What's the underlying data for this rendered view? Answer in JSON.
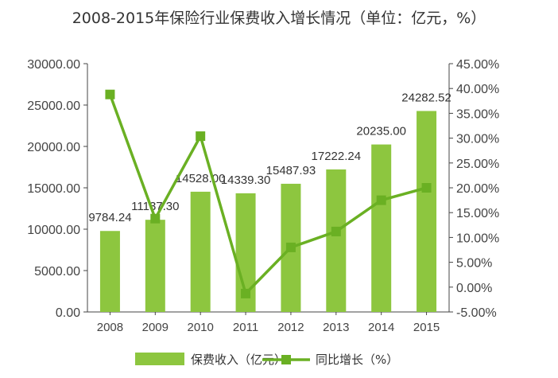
{
  "chart_data": {
    "type": "bar",
    "title": "2008-2015年保险行业保费收入增长情况（单位：亿元，%）",
    "categories": [
      "2008",
      "2009",
      "2010",
      "2011",
      "2012",
      "2013",
      "2014",
      "2015"
    ],
    "series": [
      {
        "name": "保费收入（亿元）",
        "type": "bar",
        "axis": "left",
        "values": [
          9784.24,
          11137.3,
          14528.0,
          14339.3,
          15487.93,
          17222.24,
          20235.0,
          24282.52
        ],
        "labels": [
          "9784.24",
          "11137.30",
          "14528.00",
          "14339.30",
          "15487.93",
          "17222.24",
          "20235.00",
          "24282.52"
        ]
      },
      {
        "name": "同比增长（%）",
        "type": "line",
        "axis": "right",
        "values": [
          38.8,
          13.8,
          30.4,
          -1.3,
          8.0,
          11.2,
          17.5,
          20.0
        ]
      }
    ],
    "y_left": {
      "ylim": [
        0,
        30000
      ],
      "ticks": [
        "0.00",
        "5000.00",
        "10000.00",
        "15000.00",
        "20000.00",
        "25000.00",
        "30000.00"
      ]
    },
    "y_right": {
      "ylim": [
        -5,
        45
      ],
      "ticks": [
        "-5.00%",
        "0.00%",
        "5.00%",
        "10.00%",
        "15.00%",
        "20.00%",
        "25.00%",
        "30.00%",
        "35.00%",
        "40.00%",
        "45.00%"
      ]
    },
    "legend_position": "bottom",
    "grid": false
  },
  "colors": {
    "bar": "#8dc63f",
    "line": "#6ab023",
    "axis": "#444444"
  }
}
